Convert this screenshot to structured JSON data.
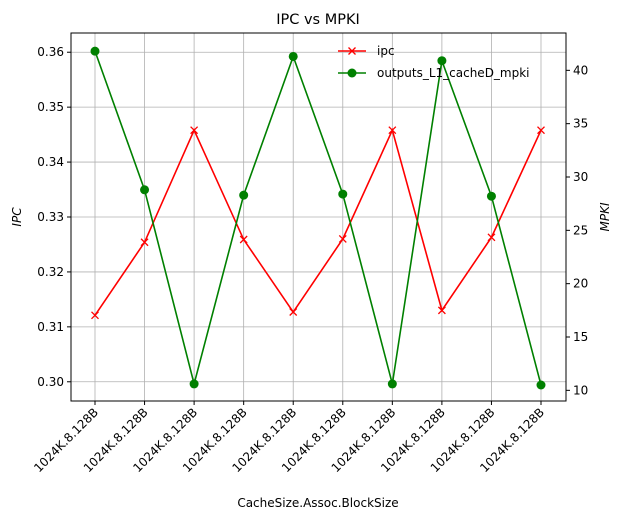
{
  "chart_data": {
    "type": "line",
    "title": "IPC vs MPKI",
    "xlabel": "CacheSize.Assoc.BlockSize",
    "ylabel_left": "IPC",
    "ylabel_right": "MPKI",
    "categories": [
      "1024K.8.128B",
      "1024K.8.128B",
      "1024K.8.128B",
      "1024K.8.128B",
      "1024K.8.128B",
      "1024K.8.128B",
      "1024K.8.128B",
      "1024K.8.128B",
      "1024K.8.128B",
      "1024K.8.128B"
    ],
    "y_left": {
      "min": 0.2965,
      "max": 0.3635,
      "ticks": [
        0.3,
        0.31,
        0.32,
        0.33,
        0.34,
        0.35,
        0.36
      ]
    },
    "y_right": {
      "min": 9.0,
      "max": 43.5,
      "ticks": [
        10,
        15,
        20,
        25,
        30,
        35,
        40
      ]
    },
    "grid": true,
    "legend_position": "top-right",
    "series": [
      {
        "name": "ipc",
        "axis": "left",
        "color": "#ff0000",
        "marker": "x",
        "values": [
          0.3121,
          0.3254,
          0.3458,
          0.3259,
          0.3127,
          0.326,
          0.3458,
          0.313,
          0.3263,
          0.3458
        ]
      },
      {
        "name": "outputs_L1_cacheD_mpki",
        "axis": "right",
        "color": "#008000",
        "marker": "o",
        "values": [
          41.8,
          28.8,
          10.6,
          28.3,
          41.3,
          28.4,
          10.6,
          40.9,
          28.2,
          10.5
        ]
      }
    ]
  }
}
